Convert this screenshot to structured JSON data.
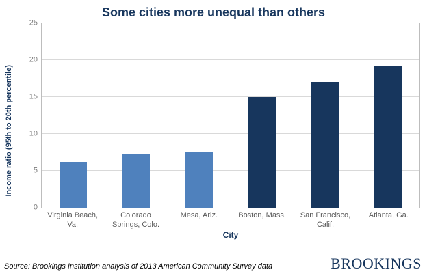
{
  "chart_data": {
    "type": "bar",
    "title": "Some cities more unequal than others",
    "categories": [
      "Virginia Beach, Va.",
      "Colorado Springs, Colo.",
      "Mesa, Ariz.",
      "Boston, Mass.",
      "San Francisco, Calif.",
      "Atlanta, Ga."
    ],
    "values": [
      6.2,
      7.3,
      7.5,
      15,
      17,
      19.2
    ],
    "bar_colors": [
      "#4f81bd",
      "#4f81bd",
      "#4f81bd",
      "#17365d",
      "#17365d",
      "#17365d"
    ],
    "xlabel": "City",
    "ylabel": "Income ratio (95th to 20th percentile)",
    "ylim": [
      0,
      25
    ],
    "yticks": [
      0,
      5,
      10,
      15,
      20,
      25
    ],
    "grid": true,
    "legend": false
  },
  "footer": {
    "source": "Source: Brookings Institution analysis of 2013  American Community Survey data",
    "logo": "BROOKINGS"
  },
  "colors": {
    "title": "#17365d",
    "light_bar": "#4f81bd",
    "dark_bar": "#17365d",
    "gridline": "#d9d9d9",
    "tick_text": "#7f7f7f"
  }
}
